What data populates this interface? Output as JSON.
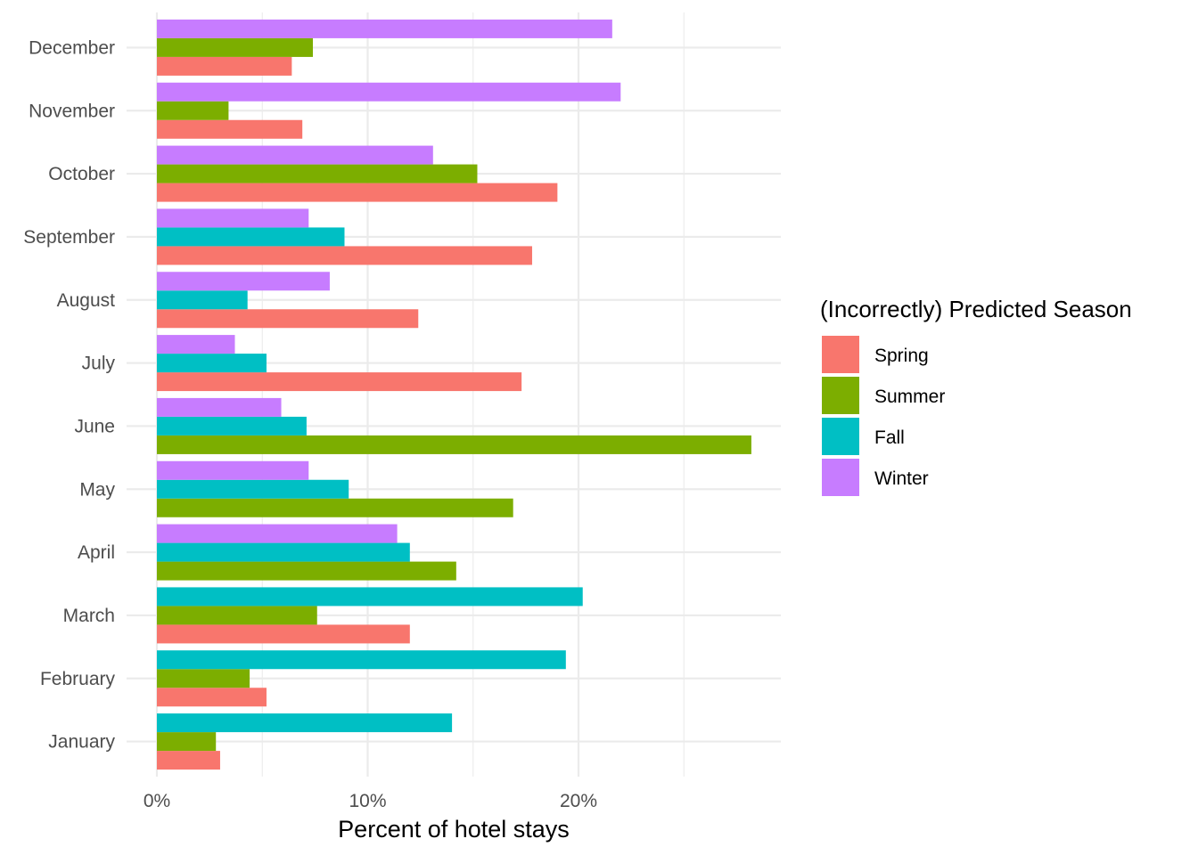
{
  "chart_data": {
    "type": "bar",
    "orientation": "horizontal",
    "grouped": true,
    "xlabel": "Percent of hotel stays",
    "ylabel": "",
    "xlim": [
      0,
      29.6
    ],
    "x_ticks": [
      0,
      10,
      20
    ],
    "x_tick_labels": [
      "0%",
      "10%",
      "20%"
    ],
    "grid": true,
    "legend": {
      "title": "(Incorrectly) Predicted Season",
      "position": "right"
    },
    "categories": [
      "January",
      "February",
      "March",
      "April",
      "May",
      "June",
      "July",
      "August",
      "September",
      "October",
      "November",
      "December"
    ],
    "series": [
      {
        "name": "Spring",
        "color": "#F8766D",
        "values": [
          3.0,
          5.2,
          12.0,
          null,
          null,
          null,
          17.3,
          12.4,
          17.8,
          19.0,
          6.9,
          6.4
        ]
      },
      {
        "name": "Summer",
        "color": "#7CAE00",
        "values": [
          2.8,
          4.4,
          7.6,
          14.2,
          16.9,
          28.2,
          null,
          null,
          null,
          15.2,
          3.4,
          7.4
        ]
      },
      {
        "name": "Fall",
        "color": "#00BFC4",
        "values": [
          14.0,
          19.4,
          20.2,
          12.0,
          9.1,
          7.1,
          5.2,
          4.3,
          8.9,
          null,
          null,
          null
        ]
      },
      {
        "name": "Winter",
        "color": "#C77CFF",
        "values": [
          null,
          null,
          null,
          11.4,
          7.2,
          5.9,
          3.7,
          8.2,
          7.2,
          13.1,
          22.0,
          21.6
        ]
      }
    ]
  }
}
